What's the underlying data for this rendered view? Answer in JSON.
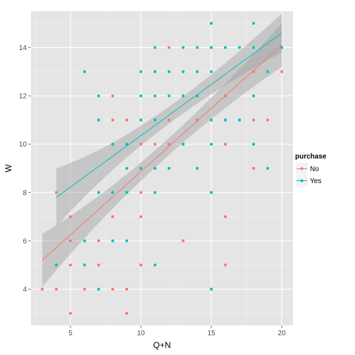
{
  "chart_data": {
    "type": "scatter",
    "xlabel": "Q+N",
    "ylabel": "W",
    "xlim": [
      2.2,
      20.8
    ],
    "ylim": [
      2.5,
      15.5
    ],
    "x_ticks": [
      5,
      10,
      15,
      20
    ],
    "y_ticks": [
      4,
      6,
      8,
      10,
      12,
      14
    ],
    "grid": true,
    "legend": {
      "title": "purchase",
      "position": "right"
    },
    "series": [
      {
        "name": "No",
        "color": "#F8766D",
        "points": [
          [
            3,
            4
          ],
          [
            4,
            4
          ],
          [
            4,
            8
          ],
          [
            5,
            3
          ],
          [
            5,
            5
          ],
          [
            5,
            6
          ],
          [
            5,
            7
          ],
          [
            6,
            4
          ],
          [
            6,
            5
          ],
          [
            7,
            5
          ],
          [
            7,
            6
          ],
          [
            8,
            4
          ],
          [
            8,
            7
          ],
          [
            8,
            11
          ],
          [
            8,
            12
          ],
          [
            9,
            3
          ],
          [
            9,
            4
          ],
          [
            9,
            11
          ],
          [
            10,
            5
          ],
          [
            10,
            7
          ],
          [
            10,
            8
          ],
          [
            10,
            9
          ],
          [
            10,
            10
          ],
          [
            10,
            11
          ],
          [
            11,
            9
          ],
          [
            11,
            10
          ],
          [
            12,
            10
          ],
          [
            12,
            11
          ],
          [
            12,
            14
          ],
          [
            13,
            6
          ],
          [
            13,
            10
          ],
          [
            13,
            12
          ],
          [
            14,
            11
          ],
          [
            14,
            12
          ],
          [
            15,
            11
          ],
          [
            15,
            14
          ],
          [
            16,
            5
          ],
          [
            16,
            7
          ],
          [
            16,
            10
          ],
          [
            16,
            12
          ],
          [
            17,
            11
          ],
          [
            18,
            9
          ],
          [
            18,
            11
          ],
          [
            18,
            13
          ],
          [
            19,
            11
          ],
          [
            20,
            13
          ],
          [
            20,
            14
          ]
        ],
        "fit": {
          "x": [
            3,
            20
          ],
          "y": [
            5.2,
            14.1
          ],
          "se_lo": [
            4.1,
            13.2
          ],
          "se_hi": [
            6.3,
            15.0
          ]
        }
      },
      {
        "name": "Yes",
        "color": "#00BFC4",
        "points": [
          [
            4,
            5
          ],
          [
            6,
            5
          ],
          [
            6,
            6
          ],
          [
            6,
            13
          ],
          [
            7,
            4
          ],
          [
            7,
            8
          ],
          [
            7,
            11
          ],
          [
            7,
            12
          ],
          [
            8,
            6
          ],
          [
            8,
            8
          ],
          [
            8,
            10
          ],
          [
            9,
            6
          ],
          [
            9,
            8
          ],
          [
            9,
            9
          ],
          [
            9,
            10
          ],
          [
            10,
            9
          ],
          [
            10,
            11
          ],
          [
            10,
            12
          ],
          [
            10,
            13
          ],
          [
            11,
            5
          ],
          [
            11,
            8
          ],
          [
            11,
            9
          ],
          [
            11,
            11
          ],
          [
            11,
            12
          ],
          [
            11,
            13
          ],
          [
            11,
            14
          ],
          [
            12,
            9
          ],
          [
            12,
            12
          ],
          [
            12,
            13
          ],
          [
            13,
            10
          ],
          [
            13,
            12
          ],
          [
            13,
            13
          ],
          [
            13,
            14
          ],
          [
            14,
            9
          ],
          [
            14,
            12
          ],
          [
            14,
            13
          ],
          [
            14,
            14
          ],
          [
            15,
            4
          ],
          [
            15,
            8
          ],
          [
            15,
            10
          ],
          [
            15,
            11
          ],
          [
            15,
            13
          ],
          [
            15,
            14
          ],
          [
            15,
            15
          ],
          [
            16,
            11
          ],
          [
            16,
            14
          ],
          [
            17,
            11
          ],
          [
            17,
            14
          ],
          [
            18,
            10
          ],
          [
            18,
            12
          ],
          [
            18,
            14
          ],
          [
            18,
            15
          ],
          [
            19,
            9
          ],
          [
            19,
            13
          ],
          [
            20,
            14
          ]
        ],
        "fit": {
          "x": [
            4,
            20
          ],
          "y": [
            7.8,
            14.6
          ],
          "se_lo": [
            6.6,
            13.8
          ],
          "se_hi": [
            9.0,
            15.4
          ]
        }
      }
    ]
  }
}
